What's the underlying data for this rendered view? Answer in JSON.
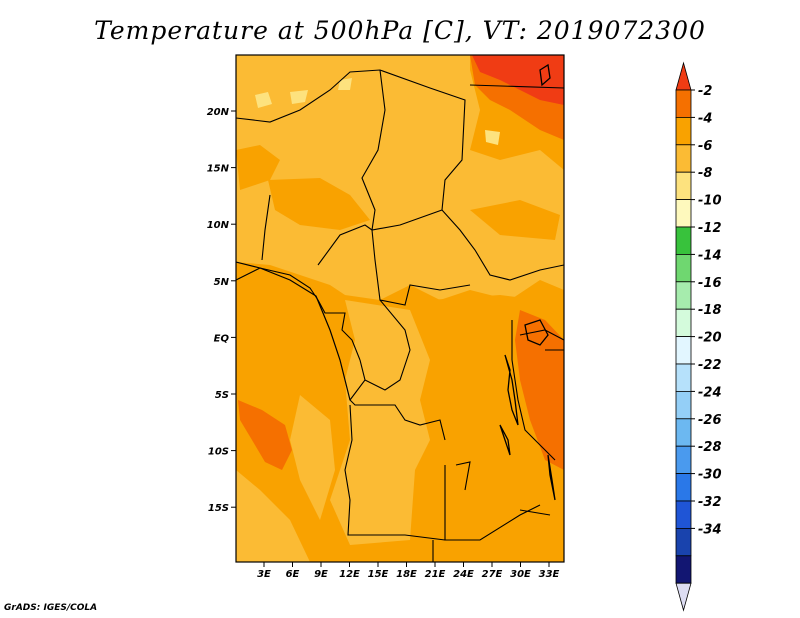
{
  "title": "Temperature at 500hPa [C], VT: 2019072300",
  "credit": "GrADS: IGES/COLA",
  "map": {
    "variable": "Temperature at 500hPa",
    "unit": "C",
    "valid_time": "2019072300",
    "lon_ticks": [
      "3E",
      "6E",
      "9E",
      "12E",
      "15E",
      "18E",
      "21E",
      "24E",
      "27E",
      "30E",
      "33E"
    ],
    "lat_ticks": [
      "20N",
      "15N",
      "10N",
      "5N",
      "EQ",
      "5S",
      "10S",
      "15S"
    ]
  },
  "colorbar": {
    "labels": [
      "-2",
      "-4",
      "-6",
      "-8",
      "-10",
      "-12",
      "-14",
      "-16",
      "-18",
      "-20",
      "-22",
      "-24",
      "-26",
      "-28",
      "-30",
      "-32",
      "-34"
    ],
    "colors": [
      "#f03c14",
      "#f57000",
      "#f9a200",
      "#fbbb34",
      "#fde27e",
      "#fef9bd",
      "#38c23c",
      "#6fd770",
      "#a6ecad",
      "#d4fbdc",
      "#e2f6ff",
      "#b6e1fb",
      "#94cff7",
      "#6cb8f1",
      "#4a9aee",
      "#2a78e8",
      "#1f55d6",
      "#1943ad",
      "#121672",
      "#dcdcf2"
    ]
  },
  "colors": {
    "t_minus2": "#f03c14",
    "t_minus4": "#f57000",
    "t_minus6": "#f9a200",
    "t_minus8": "#fbbb34",
    "t_minus10": "#fde27e"
  }
}
